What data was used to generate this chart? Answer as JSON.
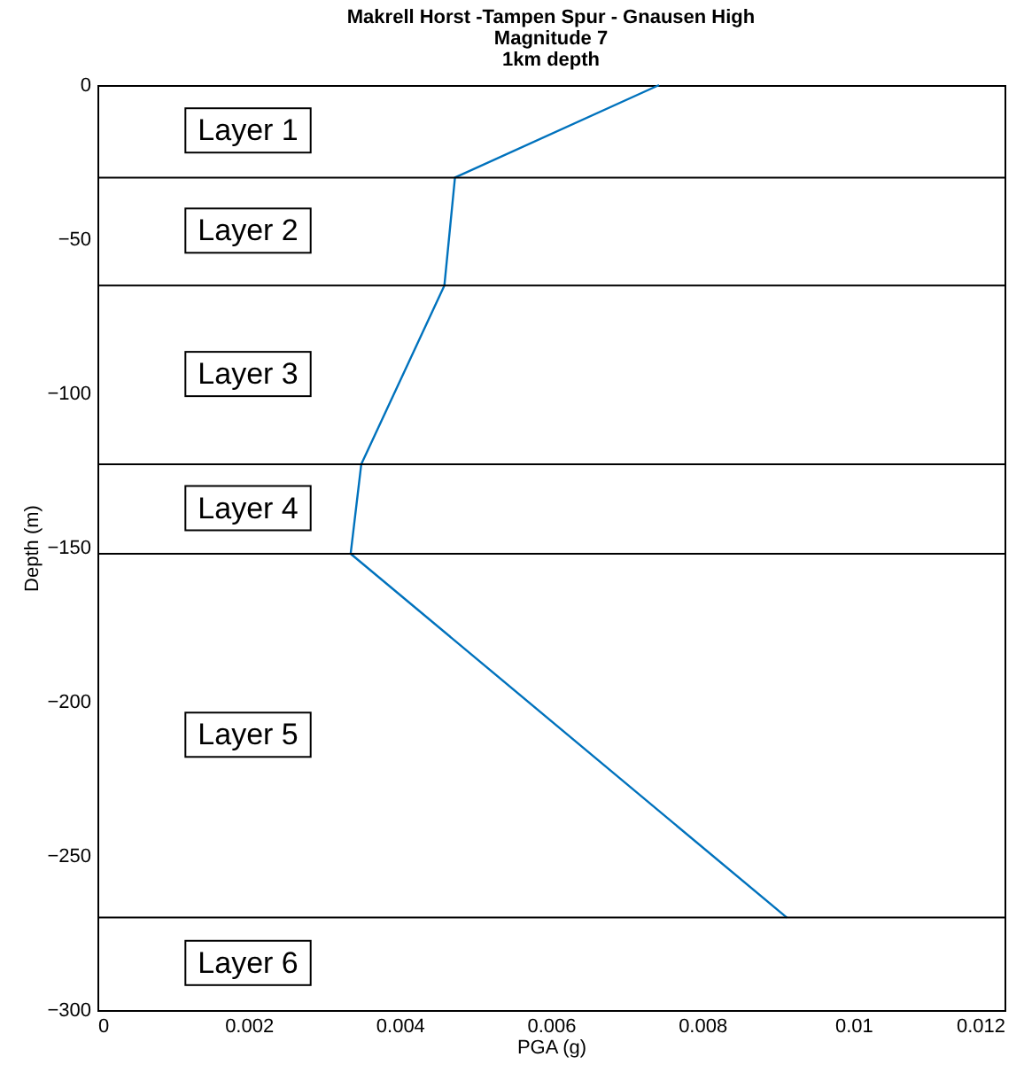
{
  "chart_data": {
    "type": "line",
    "title": [
      "Makrell Horst -Tampen Spur - Gnausen High",
      "Magnitude 7",
      "1km depth"
    ],
    "xlabel": "PGA (g)",
    "ylabel": "Depth (m)",
    "x": [
      0.00743,
      0.00473,
      0.00459,
      0.00349,
      0.00335,
      0.00912
    ],
    "series": [
      {
        "color": "#0072bd",
        "values": [
          0,
          -30,
          -65,
          -123,
          -152,
          -270
        ]
      }
    ],
    "xlim": [
      0,
      0.012
    ],
    "xticks": [
      0,
      0.002,
      0.004,
      0.006,
      0.008,
      0.01,
      0.012
    ],
    "ylim": [
      -300,
      0
    ],
    "yticks": [
      -300,
      -250,
      -200,
      -150,
      -100,
      -50,
      0
    ],
    "grid": false,
    "ref_lines": [
      {
        "axis": "y",
        "value": -30,
        "color": "#000000"
      },
      {
        "axis": "y",
        "value": -65,
        "color": "#000000"
      },
      {
        "axis": "y",
        "value": -123,
        "color": "#000000"
      },
      {
        "axis": "y",
        "value": -152,
        "color": "#000000"
      },
      {
        "axis": "y",
        "value": -270,
        "color": "#000000"
      }
    ],
    "annotations": [
      "Layer 1",
      "Layer 2",
      "Layer 3",
      "Layer 4",
      "Layer 5",
      "Layer 6"
    ]
  }
}
